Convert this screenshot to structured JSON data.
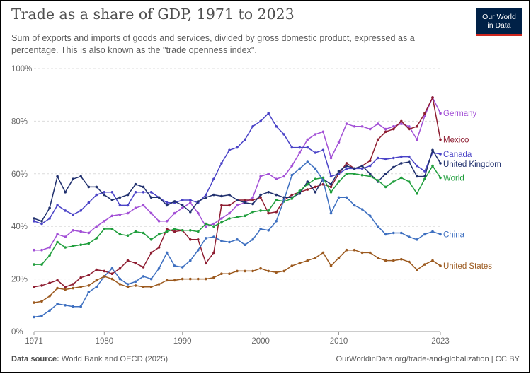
{
  "logo": {
    "line1": "Our World",
    "line2": "in Data"
  },
  "footer": {
    "source_label": "Data source:",
    "source_text": "World Bank and OECD (2025)",
    "right": "OurWorldinData.org/trade-and-globalization | CC BY"
  },
  "chart_data": {
    "type": "line",
    "title": "Trade as a share of GDP, 1971 to 2023",
    "subtitle": "Sum of exports and imports of goods and services, divided by gross domestic product, expressed as a percentage. This is also known as the \"trade openness index\".",
    "xlabel": "",
    "ylabel": "",
    "xlim": [
      1971,
      2023
    ],
    "ylim": [
      0,
      100
    ],
    "y_ticks": [
      0,
      20,
      40,
      60,
      80,
      100
    ],
    "y_tick_labels": [
      "0%",
      "20%",
      "40%",
      "60%",
      "80%",
      "100%"
    ],
    "x_ticks": [
      1971,
      1980,
      1990,
      2000,
      2010,
      2023
    ],
    "x_tick_labels": [
      "1971",
      "1980",
      "1990",
      "2000",
      "2010",
      "2023"
    ],
    "grid": true,
    "x": [
      1971,
      1972,
      1973,
      1974,
      1975,
      1976,
      1977,
      1978,
      1979,
      1980,
      1981,
      1982,
      1983,
      1984,
      1985,
      1986,
      1987,
      1988,
      1989,
      1990,
      1991,
      1992,
      1993,
      1994,
      1995,
      1996,
      1997,
      1998,
      1999,
      2000,
      2001,
      2002,
      2003,
      2004,
      2005,
      2006,
      2007,
      2008,
      2009,
      2010,
      2011,
      2012,
      2013,
      2014,
      2015,
      2016,
      2017,
      2018,
      2019,
      2020,
      2021,
      2022,
      2023
    ],
    "series": [
      {
        "name": "Germany",
        "color": "#a24fd6",
        "values": [
          31,
          31,
          32,
          37,
          36,
          38.5,
          38,
          37.5,
          40,
          42,
          44,
          44.5,
          45,
          47,
          48,
          45,
          42,
          42,
          45,
          47,
          49,
          45,
          40,
          41,
          43,
          45,
          48,
          49,
          51,
          59,
          60,
          58,
          59,
          63,
          68,
          73,
          75,
          76,
          66,
          72,
          79,
          78,
          78,
          77,
          79,
          77,
          78,
          79,
          78,
          73,
          82,
          89,
          83
        ]
      },
      {
        "name": "Mexico",
        "color": "#8e1d31",
        "values": [
          17,
          17.5,
          18.5,
          19.5,
          17,
          18,
          20.5,
          21.5,
          23.5,
          23,
          22,
          24,
          27,
          26,
          24.5,
          30,
          32,
          39,
          38,
          38.5,
          35,
          35,
          26,
          30,
          48,
          48,
          50,
          50,
          50,
          51,
          45,
          45.5,
          50,
          52,
          53,
          54,
          55,
          56,
          55,
          60,
          64,
          62,
          63,
          65,
          73,
          76,
          77,
          80,
          77,
          78,
          83,
          89,
          73
        ]
      },
      {
        "name": "Canada",
        "color": "#4a43c7",
        "values": [
          42,
          41,
          43,
          48,
          46,
          44.5,
          46,
          49,
          52,
          53,
          53,
          48,
          48,
          53,
          53,
          53,
          51,
          49,
          49,
          50,
          50,
          49,
          52,
          58,
          64,
          69,
          70,
          73,
          78,
          80,
          83,
          78,
          75,
          70,
          70,
          70,
          68,
          69,
          59,
          60,
          62,
          62,
          62,
          63,
          66,
          65.5,
          66,
          66.5,
          66.5,
          63,
          61,
          68,
          67.5
        ]
      },
      {
        "name": "United Kingdom",
        "color": "#20306e",
        "values": [
          43,
          42,
          47,
          59,
          53,
          58,
          59,
          55,
          55,
          52,
          50,
          51,
          52,
          56,
          55,
          51,
          51,
          48,
          49.5,
          48,
          45.5,
          49.5,
          51,
          52,
          51.5,
          52,
          50,
          49,
          48.5,
          52,
          53,
          52,
          51,
          51,
          52.5,
          57,
          53,
          58,
          56,
          61,
          63,
          62,
          63,
          60,
          57,
          60,
          62.5,
          64,
          64.5,
          59,
          59,
          69,
          64
        ]
      },
      {
        "name": "World",
        "color": "#1f9e3c",
        "values": [
          25.5,
          25.5,
          29,
          34,
          32,
          32.5,
          33,
          33.5,
          35.5,
          39,
          39,
          37,
          36.5,
          38,
          37.5,
          35,
          37,
          38,
          39,
          38.5,
          38.5,
          38,
          41,
          40,
          41.5,
          43,
          43.5,
          44,
          45.5,
          46,
          46,
          50,
          49.5,
          50.5,
          53.5,
          56,
          58,
          58.5,
          53,
          57,
          60,
          60,
          59.5,
          59,
          57.5,
          55,
          57,
          58.5,
          57,
          52.5,
          58,
          63,
          58.5
        ]
      },
      {
        "name": "China",
        "color": "#3d6fc0",
        "values": [
          5.5,
          6,
          8,
          10.5,
          10,
          9.5,
          9.5,
          15,
          17,
          21,
          24,
          20,
          18,
          19,
          21,
          20,
          24,
          30,
          25,
          24.5,
          27,
          31,
          35.5,
          36,
          34.5,
          34,
          35,
          33,
          35,
          39,
          38.5,
          42,
          50,
          59.5,
          62,
          64.5,
          62,
          57.5,
          45,
          51,
          51,
          48,
          46.5,
          44,
          40,
          37,
          37.5,
          37.5,
          36,
          35,
          37,
          38,
          37
        ]
      },
      {
        "name": "United States",
        "color": "#9c5a1f",
        "values": [
          11,
          11.5,
          13.5,
          16.5,
          16,
          16.5,
          17,
          17.5,
          19.5,
          21,
          20,
          18,
          17,
          17.5,
          17,
          17,
          18,
          19.5,
          19.5,
          20,
          20,
          20,
          20,
          20.5,
          22,
          22,
          23,
          23,
          23,
          24,
          23,
          22.5,
          23,
          25,
          26,
          27,
          28,
          30,
          25,
          28,
          31,
          31,
          30,
          30,
          28,
          27,
          27,
          27.5,
          26.5,
          23.5,
          25.5,
          27,
          25
        ]
      }
    ]
  }
}
